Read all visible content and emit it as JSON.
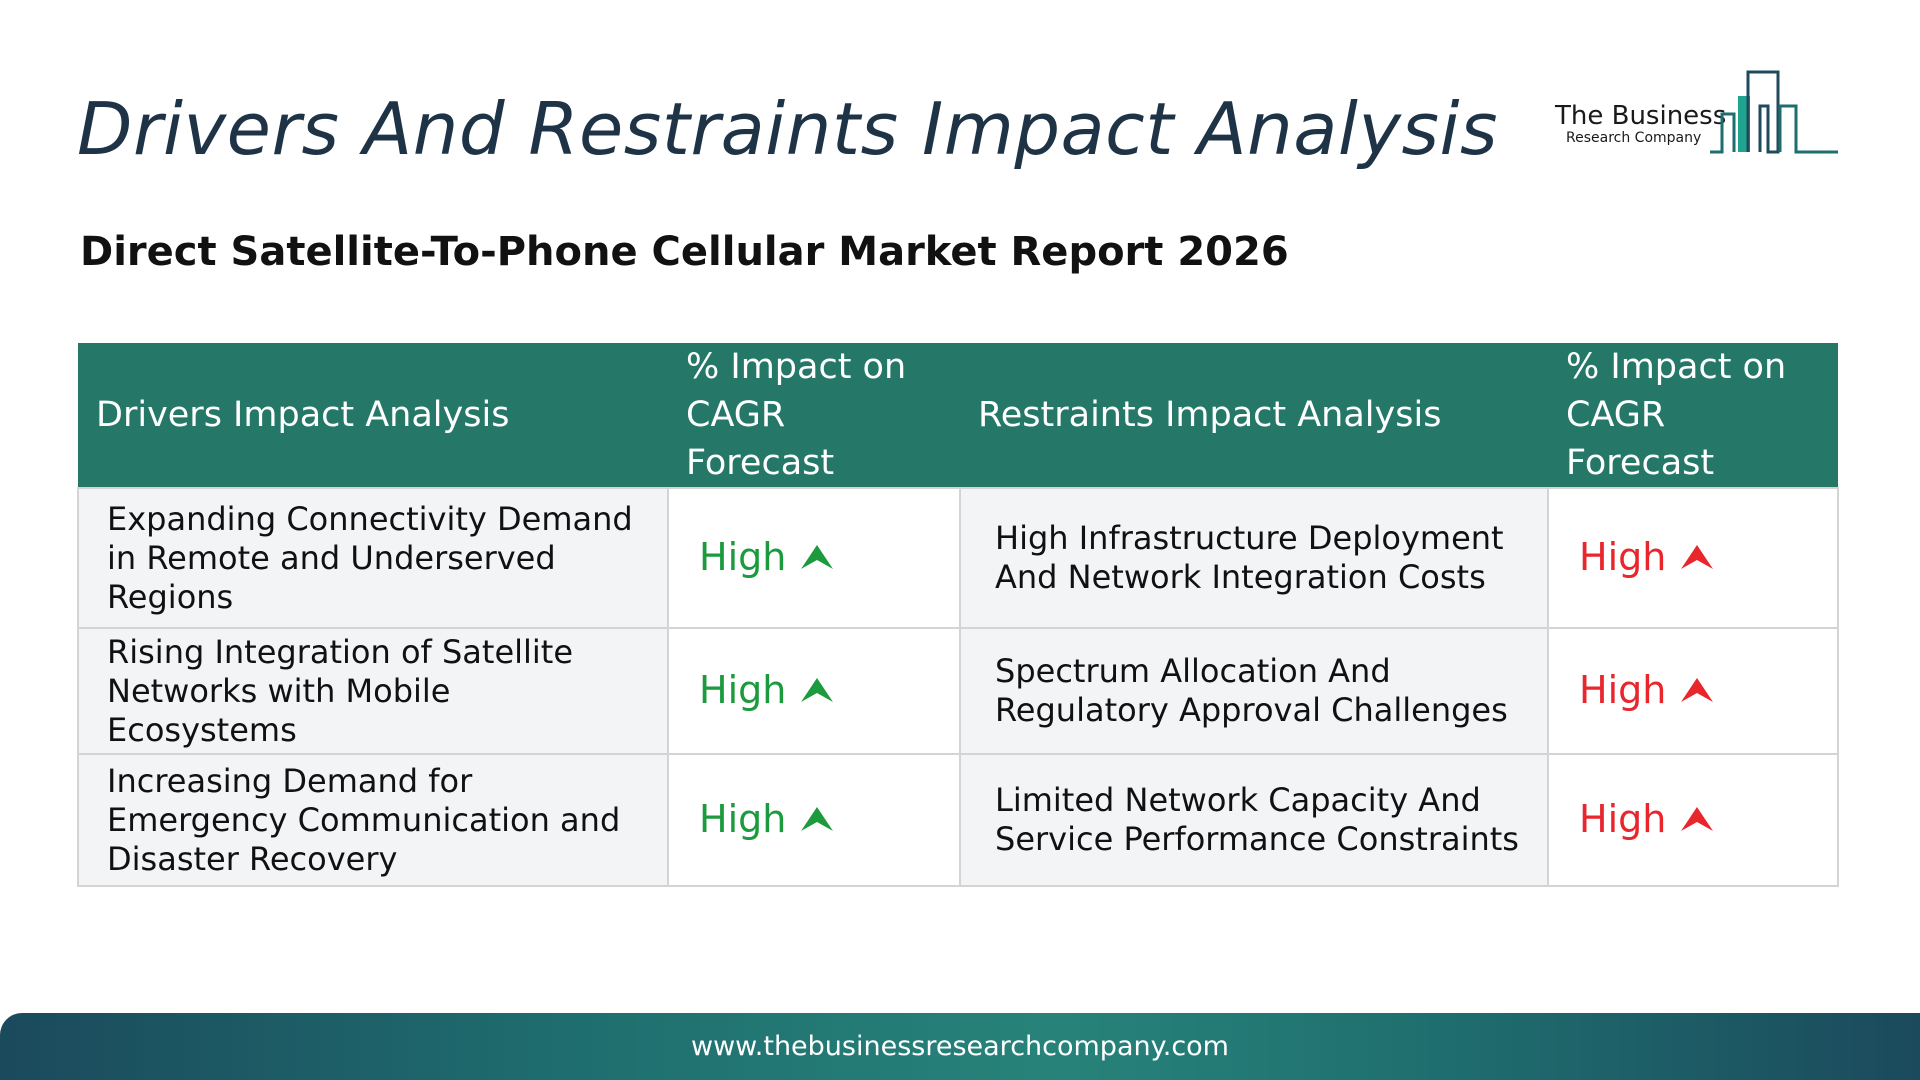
{
  "title": "Drivers And Restraints Impact Analysis",
  "subtitle": "Direct Satellite-To-Phone Cellular Market Report 2026",
  "logo": {
    "name_line1": "The Business",
    "name_line2": "Research Company",
    "icon": "building-bars-icon"
  },
  "table": {
    "headers": {
      "drivers": "Drivers Impact Analysis",
      "drivers_impact_line1": "% Impact on",
      "drivers_impact_line2": "CAGR Forecast",
      "restraints": "Restraints Impact Analysis",
      "restraints_impact_line1": "% Impact on",
      "restraints_impact_line2": "CAGR Forecast"
    },
    "rows": [
      {
        "driver": "Expanding Connectivity Demand in Remote and Underserved Regions",
        "driver_impact": "High",
        "restraint": "High Infrastructure Deployment And Network Integration Costs",
        "restraint_impact": "High"
      },
      {
        "driver": "Rising Integration of Satellite Networks with Mobile Ecosystems",
        "driver_impact": "High",
        "restraint": "Spectrum Allocation And Regulatory Approval Challenges",
        "restraint_impact": "High"
      },
      {
        "driver": "Increasing Demand for Emergency Communication and Disaster Recovery",
        "driver_impact": "High",
        "restraint": "Limited Network Capacity And Service Performance Constraints",
        "restraint_impact": "High"
      }
    ]
  },
  "colors": {
    "header_bg": "#257868",
    "driver_high": "#1c9a3e",
    "restraint_high": "#e8262b",
    "title": "#1f3347"
  },
  "icons": {
    "driver_arrow": "up-arrow-icon",
    "restraint_arrow": "up-arrow-icon"
  },
  "footer": {
    "url": "www.thebusinessresearchcompany.com"
  }
}
